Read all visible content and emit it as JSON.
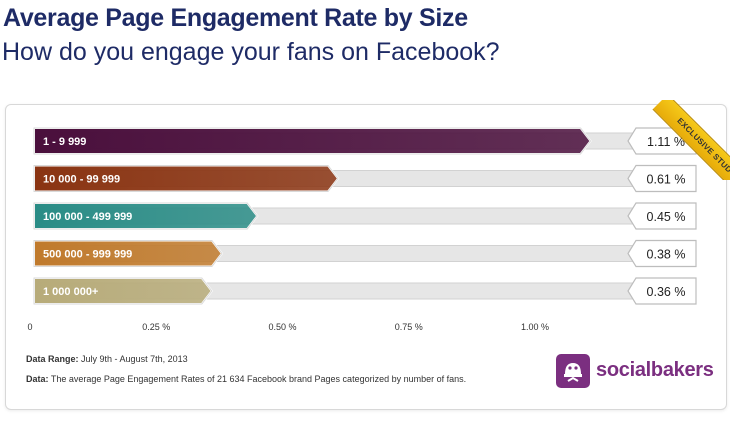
{
  "header": {
    "title": "Average Page Engagement Rate by Size",
    "subtitle": "How do you engage your fans on Facebook?"
  },
  "ribbon": {
    "label": "EXCLUSIVE STUDY",
    "color": "#f0bd12"
  },
  "chart_data": {
    "type": "bar",
    "orientation": "horizontal",
    "categories": [
      "1 - 9 999",
      "10 000 - 99 999",
      "100 000 - 499 999",
      "500 000 - 999 999",
      "1 000 000+"
    ],
    "values": [
      1.11,
      0.61,
      0.45,
      0.38,
      0.36
    ],
    "value_labels": [
      "1.11 %",
      "0.61 %",
      "0.45 %",
      "0.38 %",
      "0.36 %"
    ],
    "colors": [
      "#4a0f3c",
      "#8a3412",
      "#2a8c86",
      "#c07a2c",
      "#b7ab79"
    ],
    "xlim": [
      0,
      1.25
    ],
    "xticks": [
      0,
      0.25,
      0.5,
      0.75,
      1.0
    ],
    "xtick_labels": [
      "0",
      "0.25 %",
      "0.50 %",
      "0.75 %",
      "1.00 %"
    ],
    "grid": false
  },
  "footer": {
    "range_label": "Data Range:",
    "range_value": "July 9th - August 7th, 2013",
    "data_label": "Data:",
    "data_value": "The average Page Engagement Rates of 21 634 Facebook brand Pages categorized by number of fans."
  },
  "brand": {
    "name": "socialbakers",
    "color": "#7b2f80",
    "icon": "socialbakers-logo-icon"
  }
}
